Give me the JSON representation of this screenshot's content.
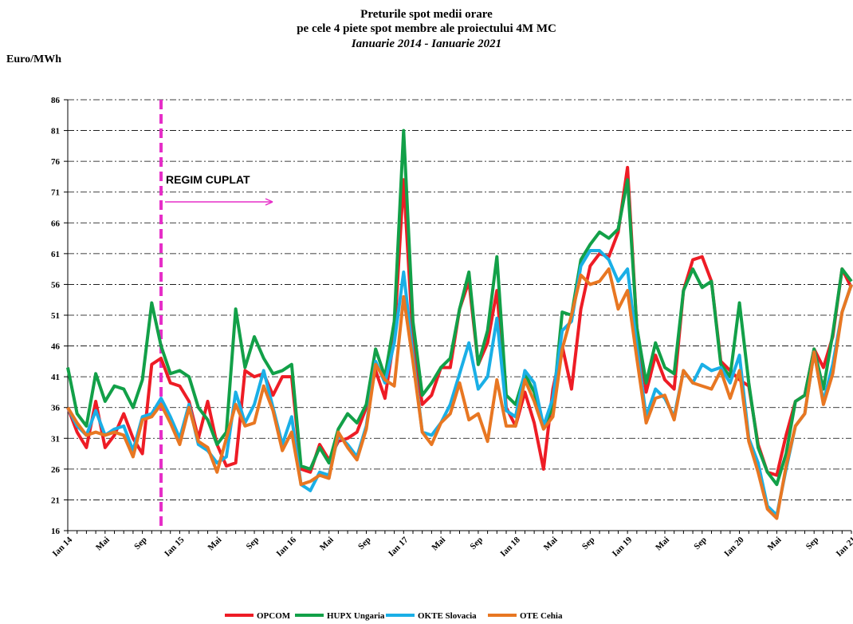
{
  "chart_data": {
    "type": "line",
    "title": "Preturile  spot medii  orare",
    "subtitle": "pe cele 4 piete spot membre  ale proiectului  4M MC",
    "period": "Ianuarie 2014 - Ianuarie 2021",
    "y_label": "Euro/MWh",
    "annotation": {
      "text": "REGIM CUPLAT",
      "at_category": 10,
      "color": "#e62ec8"
    },
    "categories": [
      "Ian 14",
      null,
      null,
      null,
      "Mai",
      null,
      null,
      null,
      "Sep",
      null,
      null,
      null,
      "Ian 15",
      null,
      null,
      null,
      "Mai",
      null,
      null,
      null,
      "Sep",
      null,
      null,
      null,
      "Ian 16",
      null,
      null,
      null,
      "Mai",
      null,
      null,
      null,
      "Sep",
      null,
      null,
      null,
      "Ian 17",
      null,
      null,
      null,
      "Mai",
      null,
      null,
      null,
      "Sep",
      null,
      null,
      null,
      "Ian 18",
      null,
      null,
      null,
      "Mai",
      null,
      null,
      null,
      "Sep",
      null,
      null,
      null,
      "Ian 19",
      null,
      null,
      null,
      "Mai",
      null,
      null,
      null,
      "Sep",
      null,
      null,
      null,
      "Ian 20",
      null,
      null,
      null,
      "Mai",
      null,
      null,
      null,
      "Sep",
      null,
      null,
      null,
      "Ian 21"
    ],
    "series": [
      {
        "name": "OPCOM",
        "color": "#ee1c25",
        "values": [
          36,
          32,
          29.5,
          37,
          29.5,
          31.5,
          35,
          31,
          28.5,
          43,
          44,
          40,
          39.5,
          37,
          31,
          37,
          30,
          26.5,
          27,
          42,
          41,
          41.5,
          38,
          41,
          41,
          26,
          25.5,
          30,
          27.5,
          30.5,
          31,
          32,
          36,
          42,
          37.5,
          47.5,
          73,
          47,
          36.5,
          38,
          42.5,
          42.5,
          52,
          56.5,
          43,
          46.5,
          55,
          36,
          33,
          38.5,
          33.5,
          26,
          39,
          46,
          39,
          52,
          59,
          61,
          60.5,
          64.5,
          75,
          49,
          38.5,
          44.5,
          40.5,
          39,
          55,
          60,
          60.5,
          56.5,
          43.5,
          42,
          40.5,
          39.5,
          30,
          25.5,
          25,
          31.5,
          37,
          38,
          45.5,
          42.5,
          47.5,
          58.5,
          55.5
        ]
      },
      {
        "name": "HUPX  Ungaria",
        "color": "#12a048",
        "values": [
          42.5,
          35,
          33,
          41.5,
          37,
          39.5,
          39,
          36,
          40.5,
          53,
          46,
          41.5,
          42,
          41,
          36,
          34,
          30,
          32,
          52,
          42.5,
          47.5,
          44,
          41.5,
          42,
          43,
          26.5,
          26,
          29.5,
          27,
          32.5,
          35,
          33.5,
          36.5,
          45.5,
          41,
          50,
          81,
          50,
          38,
          40,
          42.5,
          44,
          52,
          58,
          43,
          48.5,
          60.5,
          38,
          36.5,
          41.5,
          38.5,
          33,
          36,
          51.5,
          51,
          60,
          62.5,
          64.5,
          63.5,
          65,
          73,
          49,
          40,
          46.5,
          42.5,
          41.5,
          55,
          58.5,
          55.5,
          56.5,
          43,
          41,
          53,
          40,
          29.5,
          25.5,
          23.5,
          28.5,
          37,
          38,
          45.5,
          39,
          48,
          58.5,
          56.5
        ]
      },
      {
        "name": "OKTE Slovacia",
        "color": "#1aafe6",
        "values": [
          36,
          33,
          31.5,
          35.5,
          31.5,
          32.5,
          33,
          29,
          34.5,
          35,
          37.5,
          34.5,
          31,
          36.5,
          30,
          29,
          27,
          28,
          38.5,
          33.5,
          36.5,
          42,
          36,
          30,
          34.5,
          23.5,
          22.5,
          25.5,
          25,
          31.5,
          30,
          28,
          33,
          43.5,
          40,
          46.5,
          58,
          44.5,
          32,
          31.5,
          33.5,
          36.5,
          41.5,
          46.5,
          39,
          41,
          50.5,
          35.5,
          34.5,
          42,
          40,
          33,
          37.5,
          48.5,
          50,
          59,
          61.5,
          61.5,
          60,
          56.5,
          58.5,
          46,
          34.5,
          39,
          37.5,
          34.5,
          42,
          40,
          43,
          42,
          42.5,
          40,
          44.5,
          31,
          27,
          20,
          18.5,
          26,
          33,
          35,
          45,
          37,
          43,
          51.5,
          56
        ]
      },
      {
        "name": "OTE Cehia",
        "color": "#e87722",
        "values": [
          36,
          33.5,
          31.5,
          32,
          31.5,
          32,
          31.5,
          28,
          34,
          34.5,
          36.5,
          33.5,
          30,
          36,
          30.5,
          29.5,
          25.5,
          31,
          36.5,
          33,
          33.5,
          39.5,
          35.5,
          29,
          32,
          23.5,
          24,
          25,
          24.5,
          32,
          29.5,
          27.5,
          32.5,
          43,
          40.5,
          39.5,
          54,
          43.5,
          32,
          30,
          33.5,
          35,
          40,
          34,
          35,
          30.5,
          40.5,
          33,
          33,
          40.5,
          37,
          32.5,
          34.5,
          45.5,
          51,
          57.5,
          56,
          56.5,
          58.5,
          52,
          55,
          44,
          33.5,
          37.5,
          38,
          34,
          42,
          40,
          39.5,
          39,
          42,
          37.5,
          42,
          30.5,
          25.5,
          19.5,
          18,
          26.5,
          33,
          35,
          45,
          36.5,
          41.5,
          51.5,
          56
        ]
      }
    ],
    "ylim": [
      16,
      86
    ],
    "yticks": [
      16,
      21,
      26,
      31,
      36,
      41,
      46,
      51,
      56,
      61,
      66,
      71,
      76,
      81,
      86
    ],
    "grid": true
  }
}
